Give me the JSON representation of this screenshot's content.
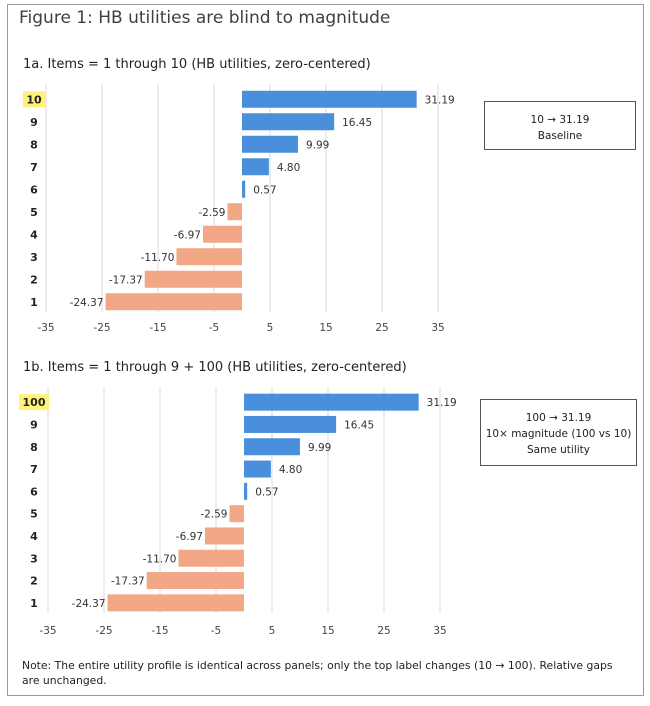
{
  "figure_title": "Figure 1: HB utilities are blind to magnitude",
  "note": "Note: The entire utility profile is identical across panels; only the top label changes (10 → 100). Relative gaps are unchanged.",
  "colors": {
    "positive": "#4a8fdb",
    "negative": "#f2a886",
    "highlight": "#fff27a",
    "grid": "#d9d9d9"
  },
  "chart_data": [
    {
      "type": "bar",
      "orientation": "horizontal",
      "title": "1a. Items = 1 through 10 (HB utilities, zero-centered)",
      "categories": [
        "10",
        "9",
        "8",
        "7",
        "6",
        "5",
        "4",
        "3",
        "2",
        "1"
      ],
      "highlighted_category": "10",
      "values": [
        31.19,
        16.45,
        9.99,
        4.8,
        0.57,
        -2.59,
        -6.97,
        -11.7,
        -17.37,
        -24.37
      ],
      "value_labels": [
        "31.19",
        "16.45",
        "9.99",
        "4.80",
        "0.57",
        "-2.59",
        "-6.97",
        "-11.70",
        "-17.37",
        "-24.37"
      ],
      "x_ticks": [
        "-35",
        "-25",
        "-15",
        "-5",
        "5",
        "15",
        "25",
        "35"
      ],
      "xlim": [
        -35,
        35
      ],
      "grid": true,
      "legend": "none",
      "callout": {
        "lines": [
          "10 → 31.19",
          "Baseline"
        ]
      }
    },
    {
      "type": "bar",
      "orientation": "horizontal",
      "title": "1b. Items = 1 through 9 + 100 (HB utilities, zero-centered)",
      "categories": [
        "100",
        "9",
        "8",
        "7",
        "6",
        "5",
        "4",
        "3",
        "2",
        "1"
      ],
      "highlighted_category": "100",
      "values": [
        31.19,
        16.45,
        9.99,
        4.8,
        0.57,
        -2.59,
        -6.97,
        -11.7,
        -17.37,
        -24.37
      ],
      "value_labels": [
        "31.19",
        "16.45",
        "9.99",
        "4.80",
        "0.57",
        "-2.59",
        "-6.97",
        "-11.70",
        "-17.37",
        "-24.37"
      ],
      "x_ticks": [
        "-35",
        "-25",
        "-15",
        "-5",
        "5",
        "15",
        "25",
        "35"
      ],
      "xlim": [
        -35,
        35
      ],
      "grid": true,
      "legend": "none",
      "callout": {
        "lines": [
          "100 → 31.19",
          "10× magnitude (100 vs 10)",
          "Same utility"
        ]
      }
    }
  ]
}
